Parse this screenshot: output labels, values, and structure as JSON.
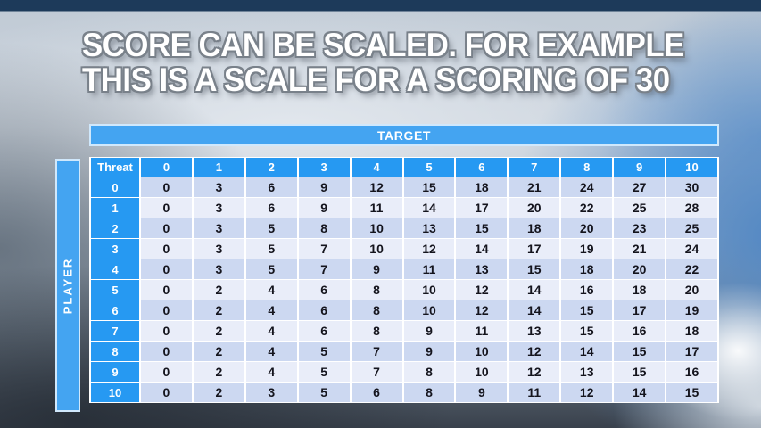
{
  "slide": {
    "title_line1": "SCORE CAN BE SCALED. FOR EXAMPLE",
    "title_line2": "THIS IS A SCALE FOR A SCORING OF 30"
  },
  "colors": {
    "header_blue": "#2699f2",
    "bar_blue": "#44a4f1",
    "row_even": "#ccd8f1",
    "row_odd": "#e9edf9",
    "cell_text": "#14141d",
    "title_fill": "#ffffff",
    "title_outline": "#79818a"
  },
  "chart_data": {
    "type": "table",
    "title": "SCORE CAN BE SCALED. FOR EXAMPLE THIS IS A SCALE FOR A SCORING OF 30",
    "target_label": "TARGET",
    "player_label": "PLAYER",
    "corner_label": "Threat",
    "column_headers": [
      "0",
      "1",
      "2",
      "3",
      "4",
      "5",
      "6",
      "7",
      "8",
      "9",
      "10"
    ],
    "row_headers": [
      "0",
      "1",
      "2",
      "3",
      "4",
      "5",
      "6",
      "7",
      "8",
      "9",
      "10"
    ],
    "rows": [
      [
        0,
        3,
        6,
        9,
        12,
        15,
        18,
        21,
        24,
        27,
        30
      ],
      [
        0,
        3,
        6,
        9,
        11,
        14,
        17,
        20,
        22,
        25,
        28
      ],
      [
        0,
        3,
        5,
        8,
        10,
        13,
        15,
        18,
        20,
        23,
        25
      ],
      [
        0,
        3,
        5,
        7,
        10,
        12,
        14,
        17,
        19,
        21,
        24
      ],
      [
        0,
        3,
        5,
        7,
        9,
        11,
        13,
        15,
        18,
        20,
        22
      ],
      [
        0,
        2,
        4,
        6,
        8,
        10,
        12,
        14,
        16,
        18,
        20
      ],
      [
        0,
        2,
        4,
        6,
        8,
        10,
        12,
        14,
        15,
        17,
        19
      ],
      [
        0,
        2,
        4,
        6,
        8,
        9,
        11,
        13,
        15,
        16,
        18
      ],
      [
        0,
        2,
        4,
        5,
        7,
        9,
        10,
        12,
        14,
        15,
        17
      ],
      [
        0,
        2,
        4,
        5,
        7,
        8,
        10,
        12,
        13,
        15,
        16
      ],
      [
        0,
        2,
        3,
        5,
        6,
        8,
        9,
        11,
        12,
        14,
        15
      ]
    ]
  }
}
